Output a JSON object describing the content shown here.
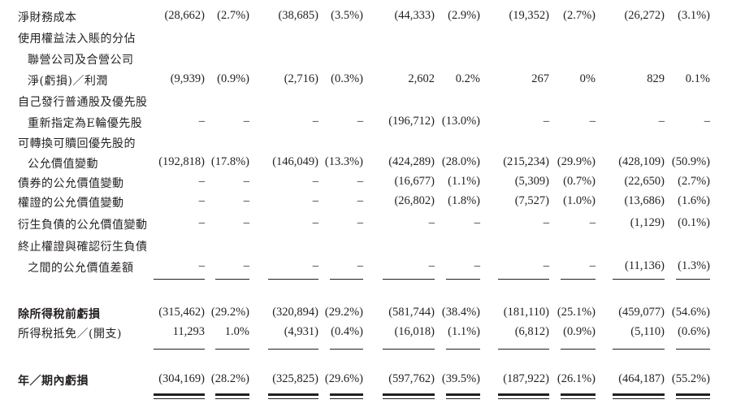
{
  "rows": [
    {
      "label": "淨財務成本",
      "values": [
        "(28,662)",
        "(2.7%)",
        "(38,685)",
        "(3.5%)",
        "(44,333)",
        "(2.9%)",
        "(19,352)",
        "(2.7%)",
        "(26,272)",
        "(3.1%)"
      ]
    },
    {
      "label": "使用權益法入賬的分佔",
      "values": []
    },
    {
      "label": "聯營公司及合營公司",
      "values": []
    },
    {
      "label": "淨(虧損)／利潤",
      "values": [
        "(9,939)",
        "(0.9%)",
        "(2,716)",
        "(0.3%)",
        "2,602",
        "0.2%",
        "267",
        "0%",
        "829",
        "0.1%"
      ]
    },
    {
      "label": "自己發行普通股及優先股",
      "values": []
    },
    {
      "label": "重新指定為E輪優先股",
      "values": [
        "–",
        "–",
        "–",
        "–",
        "(196,712)",
        "(13.0%)",
        "–",
        "–",
        "–",
        "–"
      ]
    },
    {
      "label": "可轉換可贖回優先股的",
      "values": []
    },
    {
      "label": "公允價值變動",
      "values": [
        "(192,818)",
        "(17.8%)",
        "(146,049)",
        "(13.3%)",
        "(424,289)",
        "(28.0%)",
        "(215,234)",
        "(29.9%)",
        "(428,109)",
        "(50.9%)"
      ]
    },
    {
      "label": "債券的公允價值變動",
      "values": [
        "–",
        "–",
        "–",
        "–",
        "(16,677)",
        "(1.1%)",
        "(5,309)",
        "(0.7%)",
        "(22,650)",
        "(2.7%)"
      ]
    },
    {
      "label": "權證的公允價值變動",
      "values": [
        "–",
        "–",
        "–",
        "–",
        "(26,802)",
        "(1.8%)",
        "(7,527)",
        "(1.0%)",
        "(13,686)",
        "(1.6%)"
      ]
    },
    {
      "label": "衍生負債的公允價值變動",
      "values": [
        "–",
        "–",
        "–",
        "–",
        "–",
        "–",
        "–",
        "–",
        "(1,129)",
        "(0.1%)"
      ]
    },
    {
      "label": "終止權證與確認衍生負債",
      "values": []
    },
    {
      "label": "之間的公允價值差額",
      "values": [
        "–",
        "–",
        "–",
        "–",
        "–",
        "–",
        "–",
        "–",
        "(11,136)",
        "(1.3%)"
      ]
    },
    {
      "label": "除所得稅前虧損",
      "values": [
        "(315,462)",
        "(29.2%)",
        "(320,894)",
        "(29.2%)",
        "(581,744)",
        "(38.4%)",
        "(181,110)",
        "(25.1%)",
        "(459,077)",
        "(54.6%)"
      ]
    },
    {
      "label": "所得稅抵免／(開支)",
      "values": [
        "11,293",
        "1.0%",
        "(4,931)",
        "(0.4%)",
        "(16,018)",
        "(1.1%)",
        "(6,812)",
        "(0.9%)",
        "(5,110)",
        "(0.6%)"
      ]
    },
    {
      "label": "年／期內虧損",
      "values": [
        "(304,169)",
        "(28.2%)",
        "(325,825)",
        "(29.6%)",
        "(597,762)",
        "(39.5%)",
        "(187,922)",
        "(26.1%)",
        "(464,187)",
        "(55.2%)"
      ]
    }
  ]
}
